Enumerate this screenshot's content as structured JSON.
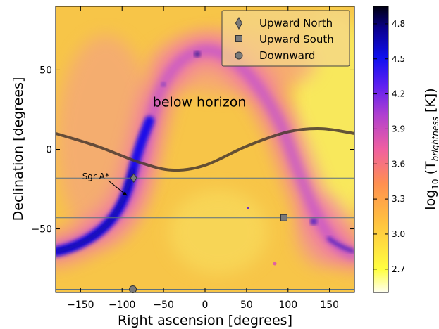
{
  "chart_data": {
    "type": "heatmap",
    "title": "",
    "xlabel": "Right ascension [degrees]",
    "ylabel": "Declination [degrees]",
    "xlim": [
      -180,
      180
    ],
    "ylim": [
      -90,
      90
    ],
    "xticks": [
      -150,
      -100,
      -50,
      0,
      50,
      100,
      150
    ],
    "yticks": [
      -50,
      0,
      50
    ],
    "colorbar": {
      "label": "log10 (T_brightness [K])",
      "range": [
        2.5,
        4.95
      ],
      "ticks": [
        2.7,
        3.0,
        3.3,
        3.6,
        3.9,
        4.2,
        4.5,
        4.8
      ],
      "colormap": "gnuplot2_r"
    },
    "legend": {
      "position": "top-right",
      "entries": [
        {
          "name": "Upward North",
          "marker": "diamond"
        },
        {
          "name": "Upward South",
          "marker": "square"
        },
        {
          "name": "Downward",
          "marker": "circle"
        }
      ]
    },
    "markers": [
      {
        "series": "Upward North",
        "ra": -86,
        "dec": -18
      },
      {
        "series": "Upward South",
        "ra": 95,
        "dec": -43
      },
      {
        "series": "Downward",
        "ra": -87,
        "dec": -88
      }
    ],
    "horizontal_lines_dec": [
      -18,
      -43,
      -88
    ],
    "horizon_curve": {
      "amplitude_deg": 13,
      "center_ra": 140,
      "curve": [
        [
          -180,
          10
        ],
        [
          -130,
          2
        ],
        [
          -80,
          -8
        ],
        [
          -40,
          -13
        ],
        [
          0,
          -10
        ],
        [
          50,
          2
        ],
        [
          100,
          11
        ],
        [
          140,
          13
        ],
        [
          180,
          10
        ]
      ]
    },
    "annotations": [
      {
        "text": "below horizon",
        "ra": -63,
        "dec": 30
      },
      {
        "text": "Sgr A*",
        "ra": -148,
        "dec": -17,
        "arrow_to_ra": -94,
        "arrow_to_dec": -29
      }
    ]
  },
  "colors": {
    "background_map": "#f7c447",
    "galactic_plane": "#1a10e0",
    "horizon_line": "#4a3a30",
    "marker_fill": "#7a7a7a",
    "hline": "#5a7080"
  }
}
